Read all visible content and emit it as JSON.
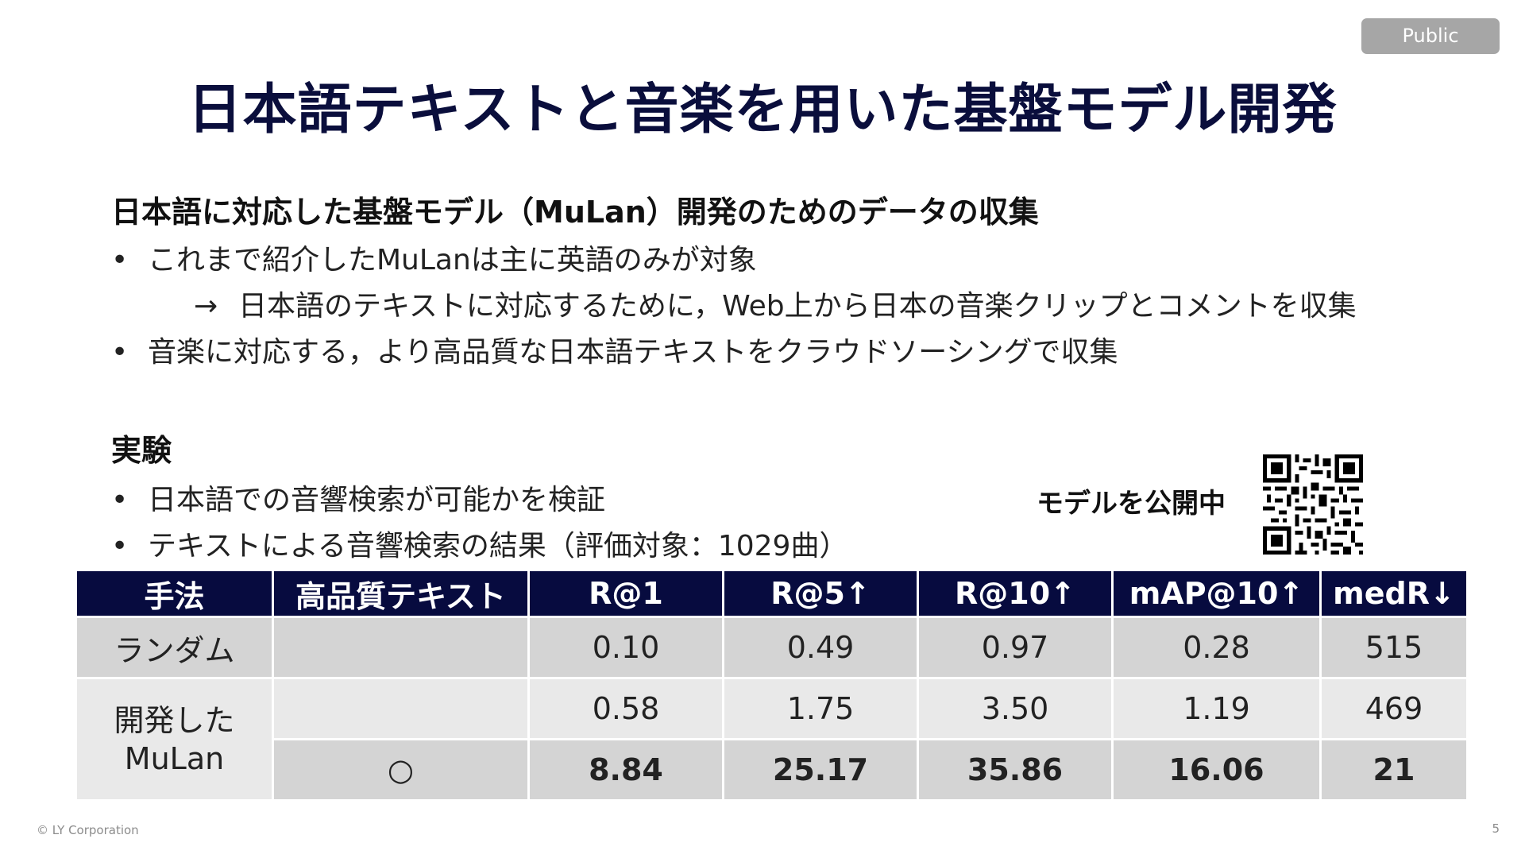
{
  "badge": "Public",
  "title": "日本語テキストと音楽を用いた基盤モデル開発",
  "section1": {
    "heading": "日本語に対応した基盤モデル（MuLan）開発のためのデータの収集",
    "bullets": [
      "これまで紹介したMuLanは主に英語のみが対象",
      "音楽に対応する，より高品質な日本語テキストをクラウドソーシングで収集"
    ],
    "sub_arrow": "→",
    "sub_text": "日本語のテキストに対応するために，Web上から日本の音楽クリップとコメントを収集"
  },
  "section2": {
    "heading": "実験",
    "bullets": [
      "日本語での音響検索が可能かを検証",
      "テキストによる音響検索の結果（評価対象：1029曲）"
    ]
  },
  "bullet_symbol": "•",
  "qr_label": "モデルを公開中",
  "table": {
    "headers": [
      "手法",
      "高品質テキスト",
      "R@1",
      "R@5↑",
      "R@10↑",
      "mAP@10↑",
      "medR↓"
    ],
    "random": {
      "method": "ランダム",
      "hq": "",
      "values": [
        "0.10",
        "0.49",
        "0.97",
        "0.28",
        "515"
      ]
    },
    "developed": {
      "method_line1": "開発した",
      "method_line2": "MuLan",
      "row1": {
        "hq": "",
        "values": [
          "0.58",
          "1.75",
          "3.50",
          "1.19",
          "469"
        ]
      },
      "row2": {
        "hq": "○",
        "values": [
          "8.84",
          "25.17",
          "35.86",
          "16.06",
          "21"
        ]
      }
    }
  },
  "footer": {
    "copyright": "© LY Corporation",
    "page": "5"
  },
  "colors": {
    "title": "#0a0e3c",
    "header_bg": "#070b3f",
    "badge_bg": "#a6a6a6",
    "row_dark": "#d4d4d4",
    "row_light": "#e9e9e9"
  }
}
